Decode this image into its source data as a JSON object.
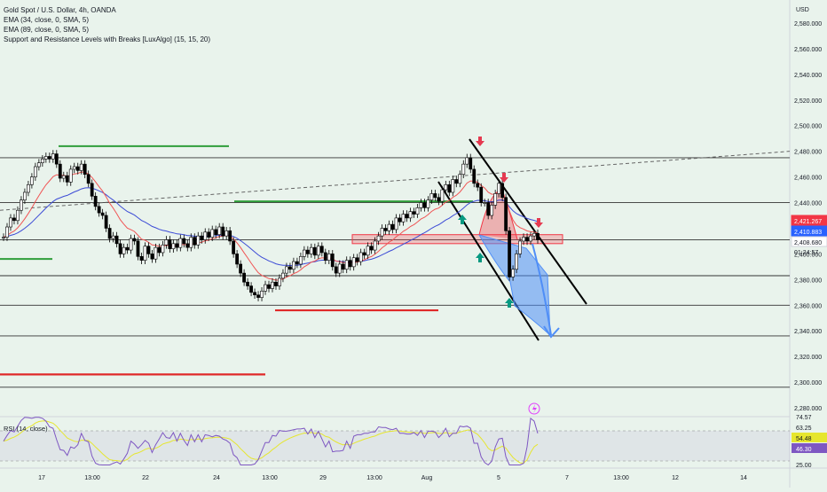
{
  "legend": {
    "symbol": "Gold Spot / U.S. Dollar, 4h, OANDA",
    "ema1": "EMA (34, close, 0, SMA, 5)",
    "ema2": "EMA (89, close, 0, SMA, 5)",
    "sr": "Support and Resistance Levels with Breaks [LuxAlgo] (15, 15, 20)"
  },
  "currency": "USD",
  "rsi_label": "RSI (14, close)",
  "colors": {
    "background": "#e9f3ec",
    "bull": "#ffffff",
    "bear": "#000000",
    "ema34": "#f05454",
    "ema89": "#3c4bd6",
    "support": "#e02929",
    "resistance": "#2f9e3a",
    "projection": "#4f8ef7",
    "rsi": "#7e57c2",
    "rsi_ma": "#e6e62e"
  },
  "chart_data": {
    "type": "candlestick",
    "ylim": [
      2280,
      2590
    ],
    "y_ticks": [
      "2,580.000",
      "2,560.000",
      "2,540.000",
      "2,520.000",
      "2,500.000",
      "2,480.000",
      "2,460.000",
      "2,440.000",
      "2,420.000",
      "2,400.000",
      "2,380.000",
      "2,360.000",
      "2,340.000",
      "2,320.000",
      "2,300.000",
      "2,280.000"
    ],
    "x_ticks": [
      "17",
      "13:00",
      "22",
      "24",
      "13:00",
      "29",
      "13:00",
      "Aug",
      "5",
      "7",
      "13:00",
      "12",
      "14"
    ],
    "closes": [
      2413,
      2421,
      2428,
      2426,
      2434,
      2442,
      2448,
      2454,
      2460,
      2468,
      2471,
      2474,
      2476,
      2474,
      2478,
      2470,
      2459,
      2461,
      2456,
      2466,
      2468,
      2465,
      2470,
      2462,
      2455,
      2445,
      2437,
      2432,
      2430,
      2420,
      2412,
      2414,
      2408,
      2400,
      2405,
      2403,
      2412,
      2410,
      2398,
      2395,
      2406,
      2400,
      2396,
      2405,
      2401,
      2407,
      2411,
      2404,
      2408,
      2405,
      2412,
      2408,
      2405,
      2413,
      2407,
      2414,
      2411,
      2417,
      2413,
      2419,
      2415,
      2421,
      2414,
      2418,
      2410,
      2400,
      2392,
      2385,
      2378,
      2375,
      2370,
      2368,
      2366,
      2371,
      2376,
      2373,
      2378,
      2375,
      2381,
      2385,
      2390,
      2388,
      2394,
      2392,
      2398,
      2403,
      2400,
      2405,
      2399,
      2406,
      2401,
      2395,
      2400,
      2390,
      2385,
      2392,
      2388,
      2395,
      2390,
      2397,
      2394,
      2401,
      2399,
      2406,
      2403,
      2410,
      2414,
      2420,
      2418,
      2423,
      2419,
      2428,
      2425,
      2431,
      2428,
      2433,
      2431,
      2436,
      2440,
      2436,
      2442,
      2447,
      2444,
      2441,
      2450,
      2454,
      2448,
      2458,
      2455,
      2462,
      2470,
      2475,
      2466,
      2455,
      2452,
      2440,
      2440,
      2430,
      2438,
      2447,
      2455,
      2444,
      2418,
      2382,
      2388,
      2400,
      2410,
      2413,
      2410,
      2414,
      2416,
      2411
    ],
    "support_levels": [
      {
        "from": 0,
        "to": 299,
        "price": 2306
      },
      {
        "from": 310,
        "to": 494,
        "price": 2356
      }
    ],
    "resistance_levels": [
      {
        "from": 0,
        "to": 59,
        "price": 2396
      },
      {
        "from": 66,
        "to": 258,
        "price": 2484
      },
      {
        "from": 264,
        "to": 533,
        "price": 2441
      }
    ],
    "horizontal_levels": [
      2475,
      2440,
      2411,
      2383,
      2360,
      2336,
      2296
    ],
    "last_prices": [
      {
        "label": "2,421.267",
        "color": "#f23645",
        "price": 2421.3
      },
      {
        "label": "2,410.883",
        "color": "#2962ff",
        "price": 2410.9
      },
      {
        "label": "2,408.680",
        "color": "#ffffff",
        "price": 2408.7
      }
    ],
    "countdown": "01:24:57",
    "rsi_ticks": [
      "74.57",
      "63.25",
      "25.00"
    ],
    "rsi_badges": [
      {
        "label": "54.48",
        "color": "#e6e62e"
      },
      {
        "label": "46.30",
        "color": "#7e57c2"
      }
    ]
  }
}
